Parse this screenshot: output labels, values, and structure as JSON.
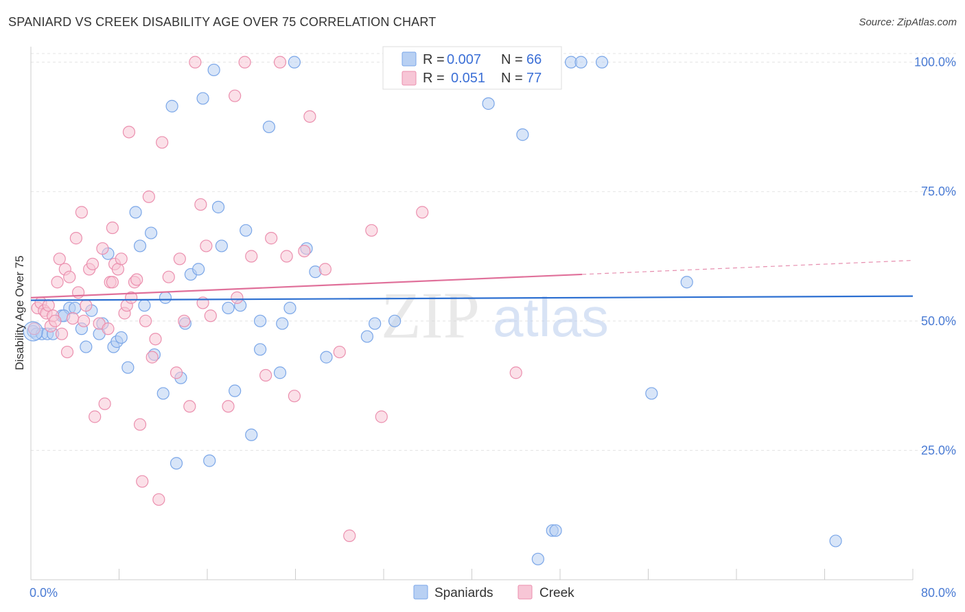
{
  "header": {
    "title": "SPANIARD VS CREEK DISABILITY AGE OVER 75 CORRELATION CHART",
    "source": "Source: ZipAtlas.com"
  },
  "legend": {
    "r_label": "R =",
    "n_label": "N =",
    "rows": [
      {
        "r": "0.007",
        "n": "66",
        "color": "#a9c5f0"
      },
      {
        "r": "0.051",
        "n": "77",
        "color": "#f5b3c8"
      }
    ]
  },
  "watermark": {
    "zip": "ZIP",
    "atlas": "atlas"
  },
  "chart_data": {
    "type": "scatter",
    "xlabel": "",
    "ylabel": "Disability Age Over 75",
    "xlim": [
      0,
      80
    ],
    "ylim": [
      0,
      103
    ],
    "x_tick_labels": [
      "0.0%",
      "80.0%"
    ],
    "y_ticks": [
      25,
      50,
      75,
      100
    ],
    "y_tick_labels": [
      "25.0%",
      "50.0%",
      "75.0%",
      "100.0%"
    ],
    "grid": true,
    "legend_position": "bottom-center",
    "series": [
      {
        "name": "Spaniards",
        "color": "#7aa6e8",
        "fill": "#b8d0f3",
        "trend": {
          "x": [
            0,
            80
          ],
          "y": [
            54.0,
            54.8
          ],
          "color": "#2c6fd1"
        },
        "points": [
          [
            0.2,
            48.0
          ],
          [
            0.5,
            47.5
          ],
          [
            1.0,
            47.5
          ],
          [
            1.5,
            47.5
          ],
          [
            2.0,
            47.5
          ],
          [
            2.8,
            51.0
          ],
          [
            3.5,
            52.5
          ],
          [
            4.0,
            52.5
          ],
          [
            4.6,
            48.5
          ],
          [
            5.0,
            45.0
          ],
          [
            5.5,
            52.0
          ],
          [
            6.2,
            47.5
          ],
          [
            6.5,
            49.5
          ],
          [
            7.0,
            63.0
          ],
          [
            7.5,
            45.0
          ],
          [
            7.8,
            46.0
          ],
          [
            8.2,
            46.8
          ],
          [
            8.8,
            41.0
          ],
          [
            9.5,
            71.0
          ],
          [
            9.9,
            64.5
          ],
          [
            10.3,
            53.0
          ],
          [
            10.9,
            67.0
          ],
          [
            11.2,
            43.5
          ],
          [
            12.0,
            36.0
          ],
          [
            12.2,
            54.5
          ],
          [
            12.8,
            91.5
          ],
          [
            13.2,
            22.5
          ],
          [
            13.6,
            39.0
          ],
          [
            14.0,
            49.5
          ],
          [
            14.5,
            59.0
          ],
          [
            15.2,
            60.0
          ],
          [
            15.6,
            93.0
          ],
          [
            16.2,
            23.0
          ],
          [
            16.6,
            98.5
          ],
          [
            17.0,
            72.0
          ],
          [
            17.3,
            64.5
          ],
          [
            17.9,
            52.5
          ],
          [
            18.5,
            36.5
          ],
          [
            19.0,
            53.0
          ],
          [
            19.5,
            67.5
          ],
          [
            20.0,
            28.0
          ],
          [
            20.8,
            50.0
          ],
          [
            20.8,
            44.5
          ],
          [
            21.6,
            87.5
          ],
          [
            22.6,
            40.0
          ],
          [
            22.8,
            49.5
          ],
          [
            23.5,
            52.5
          ],
          [
            23.9,
            100.0
          ],
          [
            25.0,
            64.0
          ],
          [
            25.8,
            59.5
          ],
          [
            26.8,
            43.0
          ],
          [
            30.5,
            47.0
          ],
          [
            31.2,
            49.5
          ],
          [
            33.0,
            50.0
          ],
          [
            41.5,
            92.0
          ],
          [
            44.6,
            86.0
          ],
          [
            47.3,
            9.5
          ],
          [
            47.6,
            9.5
          ],
          [
            49.0,
            100.0
          ],
          [
            49.9,
            100.0
          ],
          [
            51.8,
            100.0
          ],
          [
            56.3,
            36.0
          ],
          [
            59.5,
            57.5
          ],
          [
            73.0,
            7.5
          ],
          [
            46.0,
            4.0
          ],
          [
            3.0,
            51.0
          ]
        ]
      },
      {
        "name": "Creek",
        "color": "#eb8fae",
        "fill": "#f7c6d6",
        "trend": {
          "x": [
            0,
            50
          ],
          "y": [
            54.5,
            59.0
          ],
          "color": "#e0709a",
          "dashed_extension": {
            "x": [
              50,
              80
            ],
            "y": [
              59.0,
              61.7
            ]
          }
        },
        "points": [
          [
            0.3,
            48.5
          ],
          [
            0.6,
            52.5
          ],
          [
            0.9,
            53.5
          ],
          [
            1.2,
            52.0
          ],
          [
            1.4,
            51.5
          ],
          [
            1.6,
            53.0
          ],
          [
            1.8,
            49.0
          ],
          [
            2.0,
            51.0
          ],
          [
            2.2,
            50.0
          ],
          [
            2.4,
            57.5
          ],
          [
            2.6,
            62.0
          ],
          [
            2.8,
            47.5
          ],
          [
            3.1,
            60.0
          ],
          [
            3.3,
            44.0
          ],
          [
            3.5,
            58.5
          ],
          [
            3.8,
            50.5
          ],
          [
            4.1,
            66.0
          ],
          [
            4.3,
            55.5
          ],
          [
            4.6,
            71.0
          ],
          [
            4.8,
            50.0
          ],
          [
            5.0,
            53.0
          ],
          [
            5.3,
            60.0
          ],
          [
            5.6,
            61.0
          ],
          [
            5.8,
            31.5
          ],
          [
            6.2,
            49.5
          ],
          [
            6.5,
            64.0
          ],
          [
            6.7,
            34.0
          ],
          [
            7.0,
            48.5
          ],
          [
            7.2,
            57.5
          ],
          [
            7.4,
            68.0
          ],
          [
            7.6,
            61.0
          ],
          [
            7.9,
            60.0
          ],
          [
            8.2,
            62.0
          ],
          [
            8.5,
            51.5
          ],
          [
            8.7,
            53.0
          ],
          [
            8.9,
            86.5
          ],
          [
            9.1,
            54.5
          ],
          [
            9.4,
            57.5
          ],
          [
            9.6,
            58.0
          ],
          [
            9.9,
            30.0
          ],
          [
            10.1,
            19.0
          ],
          [
            10.4,
            50.0
          ],
          [
            10.7,
            74.0
          ],
          [
            11.0,
            43.0
          ],
          [
            11.3,
            46.5
          ],
          [
            11.6,
            15.5
          ],
          [
            11.9,
            84.5
          ],
          [
            12.5,
            58.5
          ],
          [
            13.2,
            40.0
          ],
          [
            13.5,
            62.0
          ],
          [
            13.9,
            50.0
          ],
          [
            14.4,
            33.5
          ],
          [
            15.4,
            72.5
          ],
          [
            15.6,
            53.5
          ],
          [
            15.9,
            64.5
          ],
          [
            16.3,
            51.0
          ],
          [
            14.9,
            100.0
          ],
          [
            17.9,
            33.5
          ],
          [
            18.5,
            93.5
          ],
          [
            18.7,
            54.5
          ],
          [
            19.4,
            100.0
          ],
          [
            20.0,
            62.5
          ],
          [
            21.3,
            39.5
          ],
          [
            21.8,
            66.0
          ],
          [
            22.6,
            100.0
          ],
          [
            23.2,
            62.5
          ],
          [
            23.9,
            35.5
          ],
          [
            24.8,
            63.5
          ],
          [
            25.3,
            89.5
          ],
          [
            26.7,
            60.0
          ],
          [
            28.0,
            44.0
          ],
          [
            28.9,
            8.5
          ],
          [
            30.9,
            67.5
          ],
          [
            31.8,
            31.5
          ],
          [
            35.5,
            71.0
          ],
          [
            44.0,
            40.0
          ],
          [
            7.4,
            57.5
          ]
        ]
      }
    ]
  }
}
